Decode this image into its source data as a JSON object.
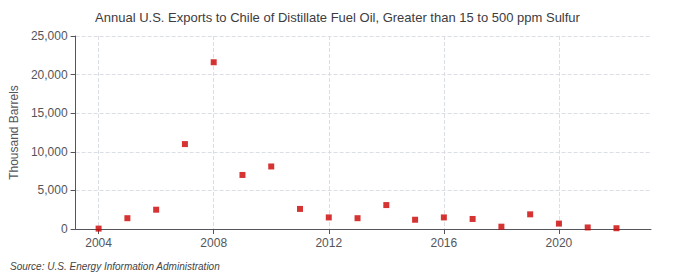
{
  "chart_data": {
    "type": "scatter",
    "title": "Annual U.S. Exports to Chile of Distillate Fuel Oil, Greater than 15 to 500 ppm Sulfur",
    "ylabel": "Thousand Barrels",
    "annotations": [
      "Source: U.S. Energy Information Administration"
    ],
    "x": [
      2004,
      2005,
      2006,
      2007,
      2008,
      2009,
      2010,
      2011,
      2012,
      2013,
      2014,
      2015,
      2016,
      2017,
      2018,
      2019,
      2020,
      2021,
      2022
    ],
    "values": [
      50,
      1400,
      2500,
      11000,
      21600,
      7000,
      8100,
      2600,
      1500,
      1400,
      3100,
      1200,
      1500,
      1300,
      300,
      1900,
      700,
      200,
      100
    ],
    "color": "#cc0000",
    "marker": "square",
    "xlim": [
      2003.2,
      2023.2
    ],
    "xticks": [
      2004,
      2008,
      2012,
      2016,
      2020
    ],
    "ylim": [
      0,
      25000
    ],
    "yticks": [
      0,
      {
        "value": 5000,
        "label": "5,000"
      },
      {
        "value": 10000,
        "label": "10,000"
      },
      {
        "value": 15000,
        "label": "15,000"
      },
      {
        "value": 20000,
        "label": "20,000"
      },
      {
        "value": 25000,
        "label": "25,000"
      }
    ],
    "grid": true
  }
}
